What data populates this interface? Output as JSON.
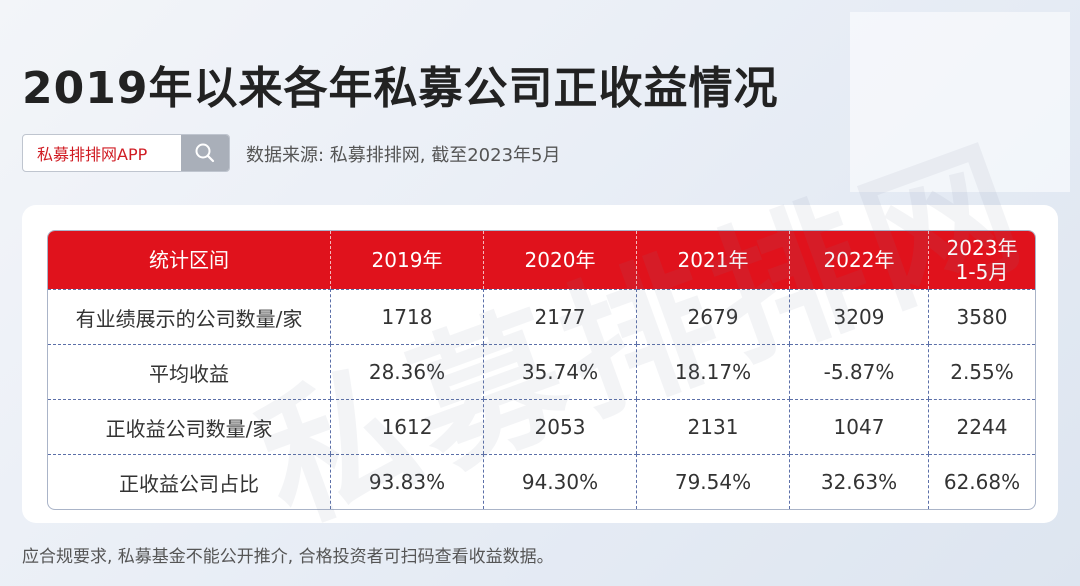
{
  "title": "2019年以来各年私募公司正收益情况",
  "search": {
    "label": "私募排排网APP"
  },
  "source": "数据来源: 私募排排网, 截至2023年5月",
  "table": {
    "headers": [
      "统计区间",
      "2019年",
      "2020年",
      "2021年",
      "2022年",
      "2023年\n1-5月"
    ],
    "rows": [
      [
        "有业绩展示的公司数量/家",
        "1718",
        "2177",
        "2679",
        "3209",
        "3580"
      ],
      [
        "平均收益",
        "28.36%",
        "35.74%",
        "18.17%",
        "-5.87%",
        "2.55%"
      ],
      [
        "正收益公司数量/家",
        "1612",
        "2053",
        "2131",
        "1047",
        "2244"
      ],
      [
        "正收益公司占比",
        "93.83%",
        "94.30%",
        "79.54%",
        "32.63%",
        "62.68%"
      ]
    ]
  },
  "watermark": "私募排排网",
  "footer": "应合规要求, 私募基金不能公开推介, 合格投资者可扫码查看收益数据。",
  "colors": {
    "header_red": "#e0121c",
    "brand_red": "#d01c23"
  }
}
